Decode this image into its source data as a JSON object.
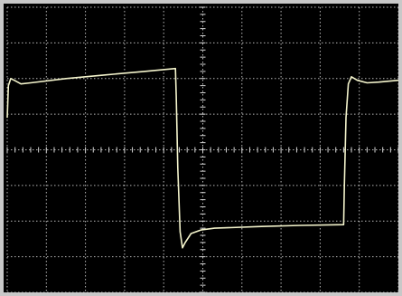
{
  "colors": {
    "bezel": "#c8c8c8",
    "screen_background": "#000000",
    "grid": "#d8d8d8",
    "trace": "#f4f4cc"
  },
  "chart_data": {
    "type": "line",
    "grid": true,
    "grid_divisions": {
      "x": 10,
      "y": 8
    },
    "axis_tick_marks": true,
    "xlim": [
      0,
      10
    ],
    "ylim": [
      -4,
      4
    ],
    "series": [
      {
        "x": [
          0.0,
          0.03,
          0.09,
          0.18,
          0.35,
          0.6,
          1.5,
          2.5,
          3.5,
          4.3,
          4.32,
          4.36,
          4.42,
          4.48,
          4.55,
          4.7,
          4.95,
          5.3,
          6.5,
          7.5,
          8.6,
          8.62,
          8.66,
          8.72,
          8.8,
          8.95,
          9.2,
          9.5,
          10.0
        ],
        "y": [
          0.9,
          1.8,
          2.0,
          1.95,
          1.85,
          1.88,
          2.0,
          2.1,
          2.2,
          2.28,
          1.5,
          -0.5,
          -2.3,
          -2.75,
          -2.6,
          -2.35,
          -2.25,
          -2.2,
          -2.15,
          -2.12,
          -2.1,
          -1.0,
          0.9,
          1.85,
          2.05,
          1.95,
          1.88,
          1.9,
          1.95
        ]
      }
    ]
  }
}
